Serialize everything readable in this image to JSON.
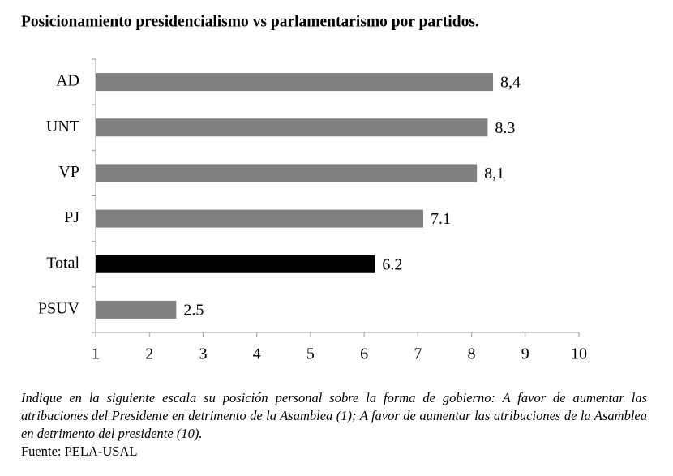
{
  "chart_data": {
    "type": "hbar",
    "title": "Posicionamiento presidencialismo vs parlamentarismo por partidos.",
    "categories": [
      "AD",
      "UNT",
      "VP",
      "PJ",
      "Total",
      "PSUV"
    ],
    "values": [
      8.4,
      8.3,
      8.1,
      7.1,
      6.2,
      2.5
    ],
    "value_labels": [
      "8,4",
      "8.3",
      "8,1",
      "7.1",
      "6.2",
      "2.5"
    ],
    "colors": [
      "#808080",
      "#808080",
      "#808080",
      "#808080",
      "#000000",
      "#808080"
    ],
    "xlim": [
      1,
      10
    ],
    "xticks": [
      1,
      2,
      3,
      4,
      5,
      6,
      7,
      8,
      9,
      10
    ],
    "grid": false,
    "note": "Indique en la siguiente escala su posición personal sobre la forma de gobierno: A favor de aumentar las atribuciones del Presidente en detrimento de la Asamblea (1); A favor de aumentar las atribuciones de la Asamblea en detrimento del presidente (10).",
    "source": "Fuente: PELA-USAL"
  }
}
